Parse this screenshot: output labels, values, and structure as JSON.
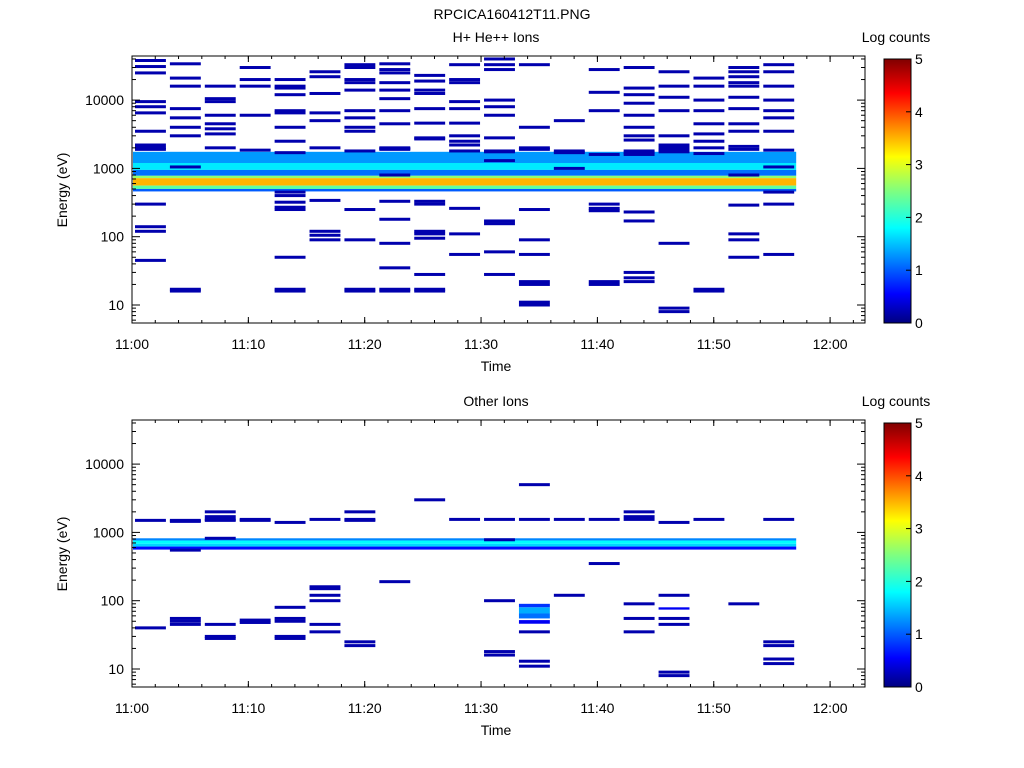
{
  "page_title": "RPCICA160412T11.PNG",
  "colorbar": {
    "label": "Log counts",
    "ticks": [
      "0",
      "1",
      "2",
      "3",
      "4",
      "5"
    ],
    "range": [
      0,
      5
    ],
    "colormap": [
      "#000080",
      "#0000ff",
      "#00ffff",
      "#ffff00",
      "#ff0000",
      "#800000"
    ]
  },
  "chart_data": [
    {
      "type": "heatmap",
      "title": "H+ He++ Ions",
      "xlabel": "Time",
      "ylabel": "Energy (eV)",
      "x_ticks": [
        "11:00",
        "11:10",
        "11:20",
        "11:30",
        "11:40",
        "11:50",
        "12:00"
      ],
      "xlim": [
        "11:00",
        "12:03"
      ],
      "y_ticks": [
        "10",
        "100",
        "1000",
        "10000"
      ],
      "ylim": [
        6,
        45000
      ],
      "yscale": "log",
      "colorbar_label": "Log counts",
      "value_scale": [
        0,
        5
      ],
      "time_bins": [
        "11:00",
        "11:03",
        "11:06",
        "11:09",
        "11:12",
        "11:15",
        "11:18",
        "11:21",
        "11:24",
        "11:27",
        "11:30",
        "11:33",
        "11:36",
        "11:39",
        "11:42",
        "11:45",
        "11:48",
        "11:51",
        "11:54",
        "11:57",
        "12:00"
      ],
      "bands": [
        {
          "e_min": 1200,
          "e_max": 1750,
          "value": 1.3
        },
        {
          "e_min": 950,
          "e_max": 1200,
          "value": 1.7
        },
        {
          "e_min": 780,
          "e_max": 950,
          "value": 1.1
        },
        {
          "e_min": 720,
          "e_max": 780,
          "value": 2.6
        },
        {
          "e_min": 560,
          "e_max": 720,
          "value": 3.5
        },
        {
          "e_min": 500,
          "e_max": 560,
          "value": 2.3
        },
        {
          "e_min": 460,
          "e_max": 500,
          "value": 1.0
        }
      ],
      "bins": [
        {
          "t": 0,
          "e": [
            38000,
            31000,
            25000,
            9500,
            8000,
            6500,
            3500,
            2200,
            2000,
            1900,
            300,
            140,
            120,
            45
          ],
          "v": 0.2
        },
        {
          "t": 1,
          "e": [
            34000,
            21000,
            16000,
            7500,
            5500,
            4000,
            3000,
            1050,
            17,
            16
          ],
          "v": 0.2
        },
        {
          "t": 2,
          "e": [
            16000,
            10500,
            9500,
            6000,
            4500,
            3800,
            3200,
            2000
          ],
          "v": 0.2
        },
        {
          "t": 3,
          "e": [
            30000,
            20000,
            16000,
            6000,
            1850
          ],
          "v": 0.2
        },
        {
          "t": 4,
          "e": [
            20000,
            16000,
            15000,
            12000,
            7000,
            6500,
            4000,
            2500,
            1700,
            450,
            400,
            320,
            270,
            250,
            50,
            17,
            16
          ],
          "v": 0.2
        },
        {
          "t": 5,
          "e": [
            26000,
            22000,
            12500,
            6500,
            5000,
            2000,
            340,
            120,
            105,
            90
          ],
          "v": 0.2
        },
        {
          "t": 6,
          "e": [
            33000,
            30000,
            20000,
            18000,
            14000,
            7000,
            5500,
            4000,
            3500,
            1800,
            250,
            90,
            17,
            16
          ],
          "v": 0.2
        },
        {
          "t": 7,
          "e": [
            34000,
            28000,
            25000,
            18000,
            14000,
            10500,
            7000,
            4500,
            2000,
            1950,
            1900,
            800,
            330,
            180,
            80,
            35,
            17,
            16
          ],
          "v": 0.2
        },
        {
          "t": 8,
          "e": [
            23000,
            19000,
            14000,
            12500,
            7500,
            4600,
            2800,
            2700,
            330,
            300,
            120,
            110,
            95,
            28,
            17,
            16
          ],
          "v": 0.2
        },
        {
          "t": 9,
          "e": [
            33000,
            20000,
            18000,
            9500,
            7500,
            4600,
            3000,
            2500,
            2200,
            1800,
            260,
            110,
            55
          ],
          "v": 0.2
        },
        {
          "t": 10,
          "e": [
            40000,
            33000,
            28000,
            10000,
            8000,
            6000,
            2800,
            1800,
            1750,
            1300,
            170,
            155,
            60,
            28
          ],
          "v": 0.2
        },
        {
          "t": 11,
          "e": [
            33000,
            4000,
            2000,
            1900,
            250,
            90,
            55,
            22,
            20,
            11,
            10
          ],
          "v": 0.2
        },
        {
          "t": 12,
          "e": [
            5000,
            1800,
            1700,
            1000
          ],
          "v": 0.2
        },
        {
          "t": 13,
          "e": [
            28000,
            13000,
            7000,
            1600,
            300,
            260,
            240,
            22,
            20
          ],
          "v": 0.2
        },
        {
          "t": 14,
          "e": [
            30000,
            15000,
            12000,
            9000,
            6000,
            4000,
            3000,
            2600,
            1800,
            1700,
            1600,
            230,
            170,
            30,
            25,
            22
          ],
          "v": 0.2
        },
        {
          "t": 15,
          "e": [
            26000,
            16000,
            11000,
            7000,
            3000,
            2200,
            2000,
            1850,
            1750,
            80,
            9,
            8
          ],
          "v": 0.2
        },
        {
          "t": 16,
          "e": [
            21000,
            16000,
            10000,
            7000,
            4500,
            3200,
            2500,
            2000,
            1650,
            17,
            16
          ],
          "v": 0.2
        },
        {
          "t": 17,
          "e": [
            30000,
            26000,
            22000,
            18000,
            16000,
            11000,
            7500,
            4500,
            3500,
            2100,
            1900,
            800,
            290,
            110,
            90,
            50
          ],
          "v": 0.2
        },
        {
          "t": 18,
          "e": [
            33000,
            26000,
            16000,
            10000,
            7000,
            5500,
            3500,
            1850,
            1050,
            450,
            300,
            55
          ],
          "v": 0.2
        }
      ]
    },
    {
      "type": "heatmap",
      "title": "Other Ions",
      "xlabel": "Time",
      "ylabel": "Energy (eV)",
      "x_ticks": [
        "11:00",
        "11:10",
        "11:20",
        "11:30",
        "11:40",
        "11:50",
        "12:00"
      ],
      "xlim": [
        "11:00",
        "12:03"
      ],
      "y_ticks": [
        "10",
        "100",
        "1000",
        "10000"
      ],
      "ylim": [
        6,
        45000
      ],
      "yscale": "log",
      "colorbar_label": "Log counts",
      "value_scale": [
        0,
        5
      ],
      "bands": [
        {
          "e_min": 760,
          "e_max": 820,
          "value": 1.2
        },
        {
          "e_min": 680,
          "e_max": 760,
          "value": 1.8
        },
        {
          "e_min": 620,
          "e_max": 680,
          "value": 1.6
        },
        {
          "e_min": 560,
          "e_max": 620,
          "value": 0.6
        }
      ],
      "bins": [
        {
          "t": 0,
          "e": [
            1500,
            40
          ],
          "v": 0.2
        },
        {
          "t": 1,
          "e": [
            1500,
            1450,
            550,
            55,
            50,
            45
          ],
          "v": 0.2
        },
        {
          "t": 2,
          "e": [
            2000,
            1700,
            1550,
            1500,
            820,
            45,
            30,
            28
          ],
          "v": 0.2
        },
        {
          "t": 3,
          "e": [
            1550,
            1500,
            52,
            48
          ],
          "v": 0.2
        },
        {
          "t": 4,
          "e": [
            1400,
            80,
            55,
            50,
            30,
            28
          ],
          "v": 0.2
        },
        {
          "t": 5,
          "e": [
            1550,
            160,
            150,
            120,
            100,
            45,
            35
          ],
          "v": 0.2
        },
        {
          "t": 6,
          "e": [
            2000,
            1550,
            1500,
            25,
            22
          ],
          "v": 0.2
        },
        {
          "t": 7,
          "e": [
            190
          ],
          "v": 0.2
        },
        {
          "t": 8,
          "e": [
            3000
          ],
          "v": 0.2
        },
        {
          "t": 9,
          "e": [
            1550
          ],
          "v": 0.2
        },
        {
          "t": 10,
          "e": [
            1550,
            780,
            100,
            18,
            16
          ],
          "v": 0.2
        },
        {
          "t": 11,
          "e": [
            5000,
            1550,
            35,
            13,
            11
          ],
          "v": 0.2
        },
        {
          "t": 12,
          "e": [
            1550,
            120
          ],
          "v": 0.2
        },
        {
          "t": 13,
          "e": [
            1550,
            350
          ],
          "v": 0.2
        },
        {
          "t": 14,
          "e": [
            2000,
            1700,
            1550,
            90,
            55,
            35
          ],
          "v": 0.2
        },
        {
          "t": 15,
          "e": [
            1400,
            120,
            55,
            45,
            9,
            8
          ],
          "v": 0.2
        },
        {
          "t": 16,
          "e": [
            1550
          ],
          "v": 0.2
        },
        {
          "t": 17,
          "e": [
            90
          ],
          "v": 0.2
        },
        {
          "t": 18,
          "e": [
            1550,
            25,
            22,
            14,
            12
          ],
          "v": 0.2
        }
      ],
      "extra_cells": [
        {
          "t": 11,
          "e_min": 80,
          "e_max": 90,
          "value": 0.8
        },
        {
          "t": 11,
          "e_min": 65,
          "e_max": 80,
          "value": 1.4
        },
        {
          "t": 11,
          "e_min": 55,
          "e_max": 65,
          "value": 1.1
        },
        {
          "t": 11,
          "e_min": 46,
          "e_max": 52,
          "value": 0.5
        },
        {
          "t": 15,
          "e_min": 74,
          "e_max": 80,
          "value": 0.5
        }
      ]
    }
  ]
}
